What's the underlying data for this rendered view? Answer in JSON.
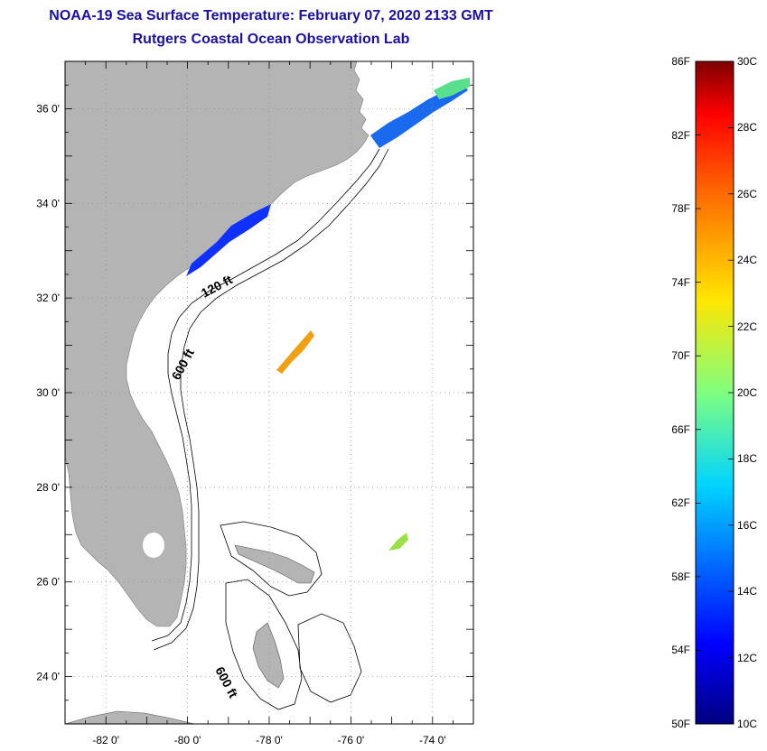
{
  "title": {
    "line1": "NOAA-19 Sea Surface Temperature:  February 07, 2020 2133 GMT",
    "line2": "Rutgers Coastal Ocean Observation Lab"
  },
  "map": {
    "lon_range": [
      -83,
      -73
    ],
    "lat_range": [
      23,
      37
    ],
    "x_ticks": [
      "-82 0'",
      "-80 0'",
      "-78 0'",
      "-76 0'",
      "-74 0'"
    ],
    "y_ticks": [
      "36 0'",
      "34 0'",
      "32 0'",
      "30 0'",
      "28 0'",
      "26 0'",
      "24 0'"
    ],
    "contour_labels": [
      "120 ft",
      "600 ft",
      "600 ft"
    ],
    "colors": {
      "land": "#b4b4b4",
      "water": "#ffffff",
      "grid": "#8c8c8c"
    }
  },
  "colorbar": {
    "f_labels": [
      "86F",
      "82F",
      "78F",
      "74F",
      "70F",
      "66F",
      "62F",
      "58F",
      "54F",
      "50F"
    ],
    "c_labels": [
      "30C",
      "28C",
      "26C",
      "24C",
      "22C",
      "20C",
      "18C",
      "16C",
      "14C",
      "12C",
      "10C"
    ],
    "range_c": [
      10,
      30
    ]
  }
}
